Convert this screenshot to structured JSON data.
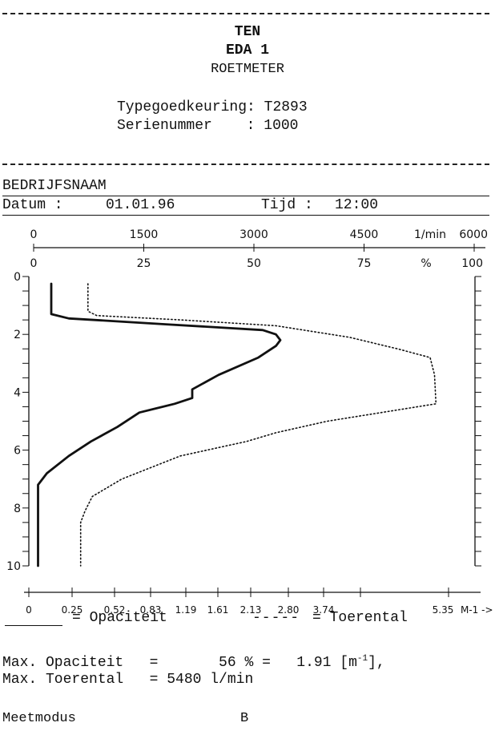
{
  "header": {
    "org": "TEN",
    "device": "EDA 1",
    "type": "ROETMETER",
    "approval_label": "Typegoedkeuring:",
    "approval_value": "T2893",
    "serial_label": "Serienummer",
    "serial_sep": ":",
    "serial_value": "1000"
  },
  "company": {
    "name": "BEDRIJFSNAAM"
  },
  "datetime": {
    "date_label": "Datum :",
    "date_value": "01.01.96",
    "time_label": "Tijd :",
    "time_value": "12:00"
  },
  "chart_data": {
    "type": "line",
    "title": "",
    "top_axis_rpm": {
      "ticks": [
        "0",
        "1500",
        "3000",
        "4500",
        "6000"
      ],
      "unit": "1/min",
      "range": [
        0,
        6000
      ]
    },
    "top_axis_percent": {
      "ticks": [
        "0",
        "25",
        "50",
        "75",
        "100"
      ],
      "unit": "%",
      "range": [
        0,
        100
      ]
    },
    "left_axis_time": {
      "ticks": [
        "0",
        "2",
        "4",
        "6",
        "8",
        "10"
      ],
      "range": [
        0,
        10
      ],
      "direction": "down"
    },
    "bottom_axis_k": {
      "ticks": [
        "0",
        "0.25",
        "0.52",
        "0.83",
        "1.19",
        "1.61",
        "2.13",
        "2.80",
        "3.74",
        "5.35"
      ],
      "unit": "M-1 ->"
    },
    "series": [
      {
        "name": "Opaciteit",
        "style": "solid",
        "color": "#111111",
        "t": [
          0.25,
          1.3,
          1.45,
          1.65,
          1.85,
          2.0,
          2.2,
          2.4,
          2.8,
          3.4,
          3.9,
          4.2,
          4.4,
          4.7,
          5.2,
          5.7,
          6.2,
          6.8,
          7.2,
          8.0,
          10.0
        ],
        "value": [
          4,
          4,
          8,
          30,
          52,
          55,
          56,
          55,
          51,
          42,
          36,
          36,
          32,
          24,
          19,
          13,
          8,
          3,
          1,
          1,
          1
        ]
      },
      {
        "name": "Toerental",
        "style": "dotted",
        "color": "#111111",
        "t": [
          0.25,
          1.2,
          1.35,
          1.5,
          1.7,
          1.9,
          2.1,
          2.5,
          2.8,
          3.4,
          4.4,
          5.0,
          5.4,
          5.7,
          6.2,
          7.0,
          7.6,
          8.1,
          8.5,
          10.0
        ],
        "value": [
          740,
          740,
          860,
          2000,
          3300,
          3800,
          4300,
          4960,
          5400,
          5460,
          5480,
          4000,
          3300,
          2900,
          2000,
          1200,
          800,
          700,
          640,
          640
        ]
      }
    ]
  },
  "legend": {
    "solid_label": "= Opaciteit",
    "dashed_label": "= Toerental"
  },
  "results": {
    "max_opacity_label": "Max. Opaciteit",
    "max_opacity_value": "=       56 % =   1.91 [m",
    "max_opacity_sup": "-1",
    "max_opacity_end": "],",
    "max_rpm_label": "Max. Toerental",
    "max_rpm_value": "= 5480 l/min"
  },
  "mode": {
    "label": "Meetmodus",
    "value": "B"
  }
}
